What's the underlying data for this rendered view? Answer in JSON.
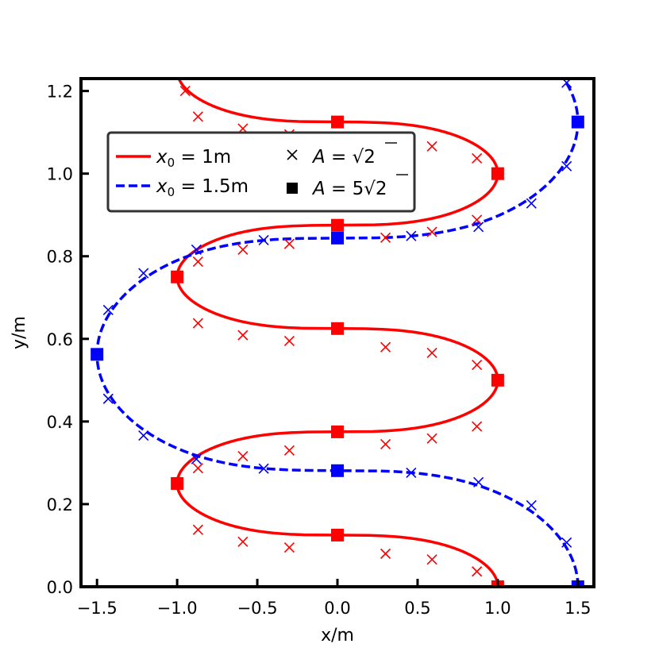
{
  "chart_data": {
    "type": "line",
    "xlabel": "x/m",
    "ylabel": "y/m",
    "xlim": [
      -1.6,
      1.6
    ],
    "ylim": [
      0.0,
      1.23
    ],
    "xticks": [
      -1.5,
      -1.0,
      -0.5,
      0.0,
      0.5,
      1.0,
      1.5
    ],
    "xtick_labels": [
      "−1.5",
      "−1.0",
      "−0.5",
      "0.0",
      "0.5",
      "1.0",
      "1.5"
    ],
    "yticks": [
      0.0,
      0.2,
      0.4,
      0.6,
      0.8,
      1.0,
      1.2
    ],
    "ytick_labels": [
      "0.0",
      "0.2",
      "0.4",
      "0.6",
      "0.8",
      "1.0",
      "1.2"
    ],
    "grid": false,
    "legend_position": "upper-left",
    "series": [
      {
        "name": "x₀ = 1m",
        "color": "#ff0000",
        "line_style": "solid",
        "amplitude": 1.0,
        "half_period": 0.25,
        "cross_markers": [
          {
            "x": 1.0,
            "y": 0.0
          },
          {
            "x": 0.87,
            "y": 0.037
          },
          {
            "x": 0.59,
            "y": 0.066
          },
          {
            "x": 0.3,
            "y": 0.08
          },
          {
            "x": -0.3,
            "y": 0.095
          },
          {
            "x": -0.59,
            "y": 0.109
          },
          {
            "x": -0.87,
            "y": 0.138
          },
          {
            "x": -1.0,
            "y": 0.25
          },
          {
            "x": -0.87,
            "y": 0.287
          },
          {
            "x": -0.59,
            "y": 0.316
          },
          {
            "x": -0.3,
            "y": 0.33
          },
          {
            "x": 0.3,
            "y": 0.345
          },
          {
            "x": 0.59,
            "y": 0.359
          },
          {
            "x": 0.87,
            "y": 0.388
          },
          {
            "x": 1.0,
            "y": 0.5
          },
          {
            "x": 0.87,
            "y": 0.537
          },
          {
            "x": 0.59,
            "y": 0.566
          },
          {
            "x": 0.3,
            "y": 0.58
          },
          {
            "x": -0.3,
            "y": 0.595
          },
          {
            "x": -0.59,
            "y": 0.609
          },
          {
            "x": -0.87,
            "y": 0.638
          },
          {
            "x": -1.0,
            "y": 0.75
          },
          {
            "x": -0.87,
            "y": 0.787
          },
          {
            "x": -0.59,
            "y": 0.816
          },
          {
            "x": -0.3,
            "y": 0.83
          },
          {
            "x": 0.3,
            "y": 0.845
          },
          {
            "x": 0.59,
            "y": 0.859
          },
          {
            "x": 0.87,
            "y": 0.888
          },
          {
            "x": 1.0,
            "y": 1.0
          },
          {
            "x": 0.87,
            "y": 1.037
          },
          {
            "x": 0.59,
            "y": 1.066
          },
          {
            "x": 0.3,
            "y": 1.08
          },
          {
            "x": -0.3,
            "y": 1.095
          },
          {
            "x": -0.59,
            "y": 1.109
          },
          {
            "x": -0.87,
            "y": 1.138
          },
          {
            "x": -0.95,
            "y": 1.2
          }
        ],
        "square_markers": [
          {
            "x": 1.0,
            "y": 0.0
          },
          {
            "x": 0.0,
            "y": 0.125
          },
          {
            "x": -1.0,
            "y": 0.25
          },
          {
            "x": 0.0,
            "y": 0.375
          },
          {
            "x": 1.0,
            "y": 0.5
          },
          {
            "x": 0.0,
            "y": 0.625
          },
          {
            "x": -1.0,
            "y": 0.75
          },
          {
            "x": 0.0,
            "y": 0.875
          },
          {
            "x": 1.0,
            "y": 1.0
          },
          {
            "x": 0.0,
            "y": 1.125
          }
        ]
      },
      {
        "name": "x₀ = 1.5m",
        "color": "#0000ff",
        "line_style": "dashed",
        "amplitude": 1.5,
        "half_period": 0.5625,
        "cross_markers": [
          {
            "x": 1.5,
            "y": 0.0
          },
          {
            "x": 1.43,
            "y": 0.107
          },
          {
            "x": 1.21,
            "y": 0.197
          },
          {
            "x": 0.88,
            "y": 0.253
          },
          {
            "x": 0.46,
            "y": 0.276
          },
          {
            "x": -0.46,
            "y": 0.286
          },
          {
            "x": -0.88,
            "y": 0.309
          },
          {
            "x": -1.21,
            "y": 0.366
          },
          {
            "x": -1.43,
            "y": 0.455
          },
          {
            "x": -1.5,
            "y": 0.5625
          },
          {
            "x": -1.43,
            "y": 0.67
          },
          {
            "x": -1.21,
            "y": 0.759
          },
          {
            "x": -0.88,
            "y": 0.816
          },
          {
            "x": -0.46,
            "y": 0.839
          },
          {
            "x": 0.46,
            "y": 0.849
          },
          {
            "x": 0.88,
            "y": 0.871
          },
          {
            "x": 1.21,
            "y": 0.928
          },
          {
            "x": 1.43,
            "y": 1.018
          },
          {
            "x": 1.5,
            "y": 1.125
          },
          {
            "x": 1.43,
            "y": 1.22
          }
        ],
        "square_markers": [
          {
            "x": 1.5,
            "y": 0.0
          },
          {
            "x": 0.0,
            "y": 0.281
          },
          {
            "x": -1.5,
            "y": 0.5625
          },
          {
            "x": 0.0,
            "y": 0.844
          },
          {
            "x": 1.5,
            "y": 1.125
          }
        ]
      }
    ],
    "legend": [
      {
        "line": "solid-red",
        "var": "x",
        "sub": "0",
        "text": " = 1m"
      },
      {
        "line": "dashed-blue",
        "var": "x",
        "sub": "0",
        "text": " = 1.5m"
      },
      {
        "marker": "cross",
        "var": "A",
        "text": " = ",
        "radicand": "2"
      },
      {
        "marker": "square",
        "var": "A",
        "text": " = 5",
        "radicand": "2"
      }
    ]
  }
}
